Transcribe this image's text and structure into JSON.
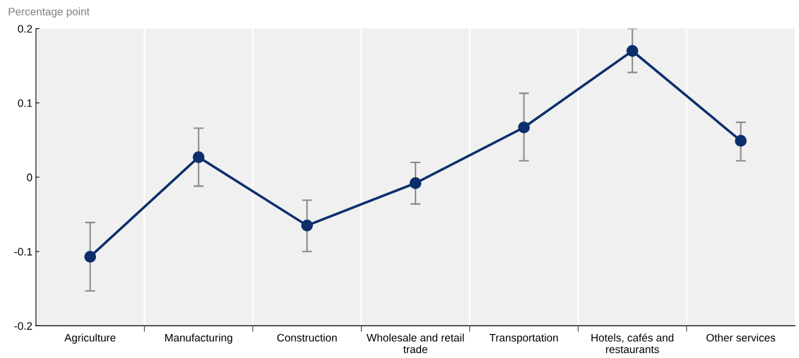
{
  "chart_data": {
    "type": "line",
    "ylabel": "Percentage point",
    "categories": [
      "Agriculture",
      "Manufacturing",
      "Construction",
      "Wholesale and retail trade",
      "Transportation",
      "Hotels, cafés and restaurants",
      "Other services"
    ],
    "series": [
      {
        "color": "#0c2f6b",
        "values": [
          -0.107,
          0.027,
          -0.065,
          -0.008,
          0.067,
          0.17,
          0.049
        ],
        "errors": [
          [
            -0.153,
            -0.061
          ],
          [
            -0.012,
            0.066
          ],
          [
            -0.1,
            -0.031
          ],
          [
            -0.036,
            0.02
          ],
          [
            0.022,
            0.113
          ],
          [
            0.141,
            0.2
          ],
          [
            0.022,
            0.074
          ]
        ]
      }
    ],
    "ylim": [
      -0.2,
      0.2
    ],
    "yticks": [
      -0.2,
      -0.1,
      0,
      0.1,
      0.2
    ],
    "grid": "x",
    "marker": "circle",
    "line_style": "solid",
    "legend": false
  }
}
